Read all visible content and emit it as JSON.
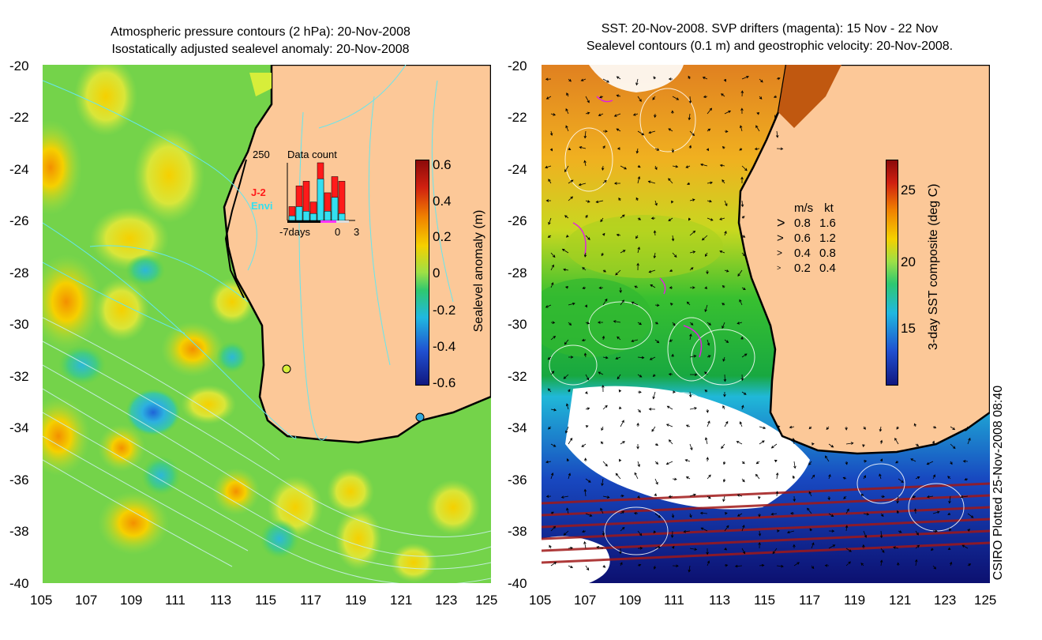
{
  "left_panel": {
    "title_line1": "Atmospheric pressure contours (2 hPa): 20-Nov-2008",
    "title_line2": "Isostatically adjusted sealevel anomaly: 20-Nov-2008",
    "colorbar_label": "Sealevel anomaly (m)",
    "colorbar_ticks": [
      "0.6",
      "0.4",
      "0.2",
      "0",
      "-0.2",
      "-0.4",
      "-0.6"
    ],
    "inset": {
      "title": "Data count",
      "max": "250",
      "series": [
        "J-2",
        "Envi"
      ],
      "x_left": "-7days",
      "x_mid": "0",
      "x_right": "3",
      "j2_values": [
        60,
        150,
        170,
        80,
        250,
        120,
        190,
        170
      ],
      "envi_values": [
        20,
        60,
        40,
        30,
        180,
        40,
        100,
        30
      ],
      "colors": {
        "j2": "#ff1a1a",
        "envi": "#33e0f0"
      }
    }
  },
  "right_panel": {
    "title_line1": "SST: 20-Nov-2008. SVP drifters (magenta): 15 Nov - 22 Nov",
    "title_line2": "Sealevel contours (0.1 m) and geostrophic velocity: 20-Nov-2008.",
    "colorbar_label": "3-day SST composite (deg C)",
    "colorbar_ticks": [
      "25",
      "20",
      "15"
    ],
    "velocity_legend": {
      "header_ms": "m/s",
      "header_kt": "kt",
      "rows": [
        {
          "ms": "0.8",
          "kt": "1.6"
        },
        {
          "ms": "0.6",
          "kt": "1.2"
        },
        {
          "ms": "0.4",
          "kt": "0.8"
        },
        {
          "ms": "0.2",
          "kt": "0.4"
        }
      ]
    }
  },
  "y_ticks": [
    "-20",
    "-22",
    "-24",
    "-26",
    "-28",
    "-30",
    "-32",
    "-34",
    "-36",
    "-38",
    "-40"
  ],
  "x_ticks": [
    "105",
    "107",
    "109",
    "111",
    "113",
    "115",
    "117",
    "119",
    "121",
    "123",
    "125"
  ],
  "credit": "CSIRO Plotted 25-Nov-2008 08:40",
  "colors": {
    "land": "#fcc898",
    "ocean_mid": "#5cd44a",
    "contour": "#66e6ee"
  }
}
